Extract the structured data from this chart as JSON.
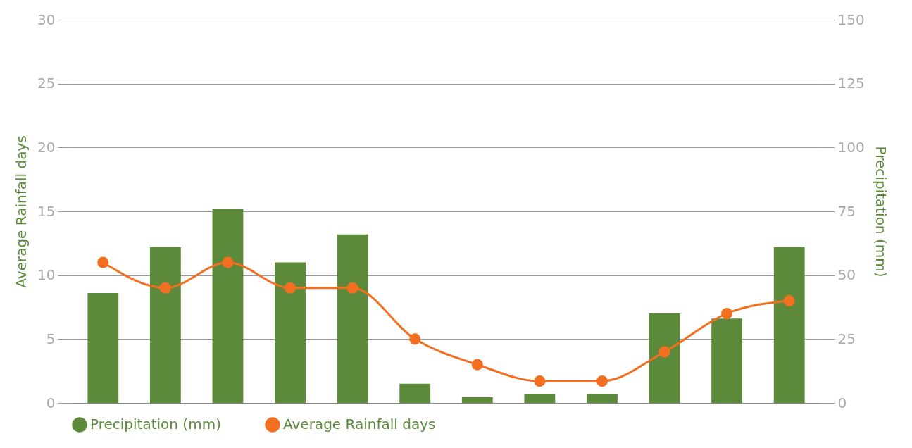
{
  "chart_data": {
    "type": "bar",
    "ylabel": "Average Rainfall days",
    "y2label": "Precipitation (mm)",
    "categories": [
      null,
      null,
      null,
      null,
      null,
      null,
      null,
      null,
      null,
      null,
      null,
      null
    ],
    "series": [
      {
        "name": "Precipitation (mm)",
        "axis": "y2",
        "color": "#5d8a3a",
        "values": [
          43,
          61,
          76,
          55,
          66,
          7.5,
          2.3,
          3.4,
          3.4,
          35,
          33,
          61
        ]
      },
      {
        "name": "Average Rainfall days",
        "type": "line",
        "color": "#f26f21",
        "marker": "circle",
        "values": [
          11,
          9,
          11,
          9,
          9,
          5,
          3,
          1.7,
          1.7,
          4,
          7,
          8
        ]
      }
    ],
    "ylim": [
      0,
      30
    ],
    "yticks": [
      0,
      5,
      10,
      15,
      20,
      25,
      30
    ],
    "y2lim": [
      0,
      150
    ],
    "y2ticks": [
      0,
      25,
      50,
      75,
      100,
      125,
      150
    ],
    "grid": "y",
    "legend": "bottom"
  }
}
